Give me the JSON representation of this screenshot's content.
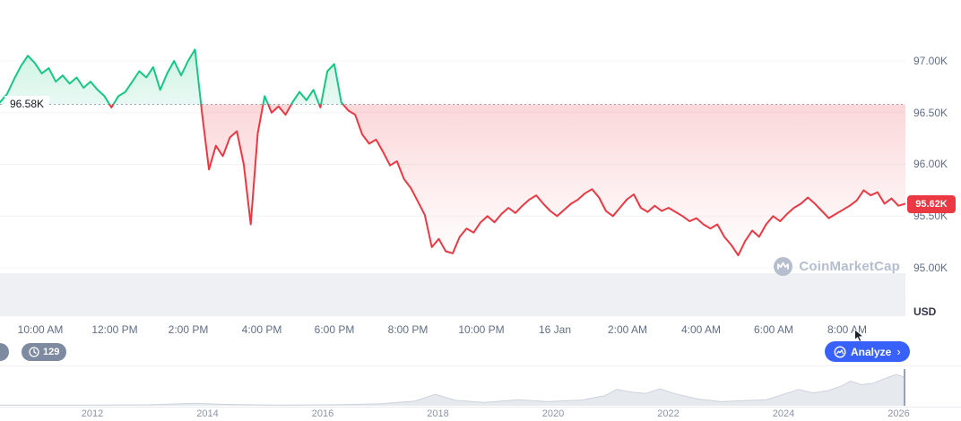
{
  "overlays": {
    "baseline_label": "96.58K",
    "price_badge": "95.62K",
    "usd_label": "USD",
    "count_badge": "129",
    "analyze_label": "Analyze",
    "analyze_chevron": "›",
    "watermark_text": "CoinMarketCap"
  },
  "colors": {
    "green": "#16c784",
    "red": "#ea3943",
    "blue": "#3861fb",
    "badge_gray": "#7e8aa0",
    "axis_text": "#616e85",
    "watermark": "#b6becd",
    "volume_band": "#eef0f4",
    "nav_fill": "#e6e9ee",
    "nav_line": "#cdd3dd",
    "grid": "#f3f4f6",
    "baseline_dots": "#98a2b3"
  },
  "chart_data": [
    {
      "type": "line",
      "name": "btc-price-intraday",
      "unit": "thousand USD",
      "baseline": 96.58,
      "current_value": 95.62,
      "y_ticks": [
        "97.00K",
        "96.50K",
        "96.00K",
        "95.50K",
        "95.00K"
      ],
      "y_tick_values": [
        97.0,
        96.5,
        96.0,
        95.5,
        95.0
      ],
      "x_ticks": [
        "10:00 AM",
        "12:00 PM",
        "2:00 PM",
        "4:00 PM",
        "6:00 PM",
        "8:00 PM",
        "10:00 PM",
        "16 Jan",
        "2:00 AM",
        "4:00 AM",
        "6:00 AM",
        "8:00 AM"
      ],
      "x_sampling": "uniform across visible window",
      "legend": "none",
      "grid": "horizontal, faint; dotted baseline at 96.58K",
      "values": [
        96.6,
        96.68,
        96.82,
        96.95,
        97.05,
        96.98,
        96.88,
        96.93,
        96.8,
        96.86,
        96.78,
        96.84,
        96.74,
        96.8,
        96.72,
        96.66,
        96.55,
        96.66,
        96.7,
        96.8,
        96.9,
        96.84,
        96.94,
        96.72,
        96.88,
        97.0,
        96.86,
        97.0,
        97.11,
        96.5,
        95.95,
        96.18,
        96.08,
        96.26,
        96.32,
        96.0,
        95.42,
        96.3,
        96.66,
        96.5,
        96.56,
        96.48,
        96.6,
        96.7,
        96.62,
        96.72,
        96.55,
        96.9,
        96.97,
        96.6,
        96.52,
        96.48,
        96.29,
        96.2,
        96.24,
        96.12,
        95.99,
        96.03,
        95.86,
        95.77,
        95.64,
        95.51,
        95.2,
        95.28,
        95.16,
        95.14,
        95.3,
        95.38,
        95.34,
        95.44,
        95.5,
        95.44,
        95.52,
        95.58,
        95.53,
        95.6,
        95.66,
        95.7,
        95.62,
        95.55,
        95.5,
        95.56,
        95.62,
        95.66,
        95.72,
        95.76,
        95.68,
        95.55,
        95.5,
        95.58,
        95.66,
        95.71,
        95.58,
        95.54,
        95.6,
        95.55,
        95.58,
        95.54,
        95.5,
        95.45,
        95.48,
        95.42,
        95.38,
        95.42,
        95.3,
        95.22,
        95.12,
        95.26,
        95.36,
        95.3,
        95.42,
        95.5,
        95.45,
        95.52,
        95.58,
        95.62,
        95.68,
        95.62,
        95.55,
        95.48,
        95.52,
        95.56,
        95.6,
        95.65,
        95.75,
        95.7,
        95.73,
        95.62,
        95.67,
        95.6,
        95.62
      ]
    },
    {
      "type": "area",
      "name": "history-navigator",
      "x_labels": [
        "2012",
        "2014",
        "2016",
        "2018",
        "2020",
        "2022",
        "2024",
        "2026"
      ],
      "value_scale": "relative height 0-1",
      "points": [
        [
          2010.4,
          0.02
        ],
        [
          2012,
          0.02
        ],
        [
          2013,
          0.03
        ],
        [
          2013.8,
          0.07
        ],
        [
          2014.3,
          0.04
        ],
        [
          2015.2,
          0.02
        ],
        [
          2016.2,
          0.03
        ],
        [
          2017.0,
          0.06
        ],
        [
          2017.6,
          0.14
        ],
        [
          2017.95,
          0.34
        ],
        [
          2018.3,
          0.16
        ],
        [
          2018.8,
          0.1
        ],
        [
          2019.4,
          0.18
        ],
        [
          2019.9,
          0.12
        ],
        [
          2020.5,
          0.17
        ],
        [
          2020.9,
          0.3
        ],
        [
          2021.1,
          0.48
        ],
        [
          2021.35,
          0.4
        ],
        [
          2021.6,
          0.36
        ],
        [
          2021.85,
          0.5
        ],
        [
          2022.1,
          0.36
        ],
        [
          2022.5,
          0.2
        ],
        [
          2022.9,
          0.12
        ],
        [
          2023.3,
          0.15
        ],
        [
          2023.7,
          0.18
        ],
        [
          2024.0,
          0.34
        ],
        [
          2024.25,
          0.48
        ],
        [
          2024.5,
          0.38
        ],
        [
          2024.75,
          0.44
        ],
        [
          2025.0,
          0.58
        ],
        [
          2025.15,
          0.72
        ],
        [
          2025.35,
          0.62
        ],
        [
          2025.55,
          0.66
        ],
        [
          2025.75,
          0.8
        ],
        [
          2025.95,
          0.92
        ],
        [
          2026.1,
          0.84
        ]
      ]
    }
  ]
}
